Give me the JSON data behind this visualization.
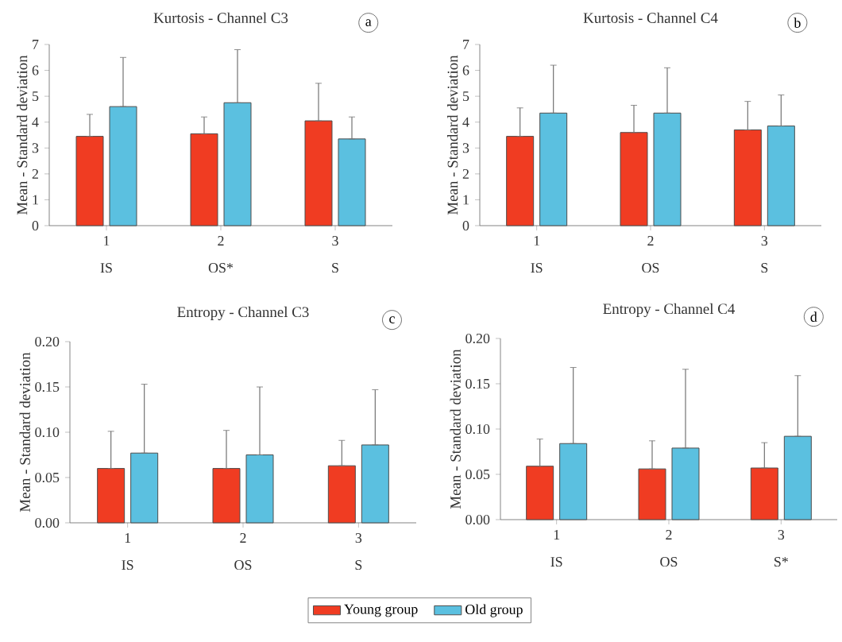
{
  "chart_data": [
    {
      "type": "bar",
      "title": "Kurtosis - Channel C3",
      "ylabel": "Mean - Standard deviation",
      "categories": [
        "1",
        "2",
        "3"
      ],
      "annotations": [
        "IS",
        "OS*",
        "S",
        "a"
      ],
      "ylim": [
        0,
        7
      ],
      "yticks": [
        0,
        1,
        2,
        3,
        4,
        5,
        6,
        7
      ],
      "series": [
        {
          "color": "#f03c22",
          "values": [
            3.45,
            3.55,
            4.05
          ],
          "errors": [
            [
              3.45,
              4.3
            ],
            [
              3.55,
              4.2
            ],
            [
              4.05,
              5.5
            ]
          ]
        },
        {
          "color": "#5bc0e0",
          "values": [
            4.6,
            4.75,
            3.35
          ],
          "errors": [
            [
              4.6,
              6.5
            ],
            [
              4.75,
              6.8
            ],
            [
              3.35,
              4.2
            ]
          ]
        }
      ]
    },
    {
      "type": "bar",
      "title": "Kurtosis - Channel C4",
      "ylabel": "Mean - Standard deviation",
      "categories": [
        "1",
        "2",
        "3"
      ],
      "annotations": [
        "IS",
        "OS",
        "S",
        "b"
      ],
      "ylim": [
        0,
        7
      ],
      "yticks": [
        0,
        1,
        2,
        3,
        4,
        5,
        6,
        7
      ],
      "series": [
        {
          "color": "#f03c22",
          "values": [
            3.45,
            3.6,
            3.7
          ],
          "errors": [
            [
              3.45,
              4.55
            ],
            [
              3.6,
              4.65
            ],
            [
              3.7,
              4.8
            ]
          ]
        },
        {
          "color": "#5bc0e0",
          "values": [
            4.35,
            4.35,
            3.85
          ],
          "errors": [
            [
              4.35,
              6.2
            ],
            [
              4.35,
              6.1
            ],
            [
              3.85,
              5.05
            ]
          ]
        }
      ]
    },
    {
      "type": "bar",
      "title": "Entropy - Channel C3",
      "ylabel": "Mean - Standard deviation",
      "categories": [
        "1",
        "2",
        "3"
      ],
      "annotations": [
        "IS",
        "OS",
        "S",
        "c"
      ],
      "ylim": [
        0,
        0.2
      ],
      "yticks": [
        {
          "value": 0,
          "label": "0.00"
        },
        {
          "value": 0.05,
          "label": "0.05"
        },
        {
          "value": 0.1,
          "label": "0.10"
        },
        {
          "value": 0.15,
          "label": "0.15"
        },
        {
          "value": 0.2,
          "label": "0.20"
        }
      ],
      "series": [
        {
          "color": "#f03c22",
          "values": [
            0.06,
            0.06,
            0.063
          ],
          "errors": [
            [
              0.06,
              0.101
            ],
            [
              0.06,
              0.102
            ],
            [
              0.063,
              0.091
            ]
          ]
        },
        {
          "color": "#5bc0e0",
          "values": [
            0.077,
            0.075,
            0.086
          ],
          "errors": [
            [
              0.077,
              0.153
            ],
            [
              0.075,
              0.15
            ],
            [
              0.086,
              0.147
            ]
          ]
        }
      ]
    },
    {
      "type": "bar",
      "title": "Entropy - Channel C4",
      "ylabel": "Mean - Standard deviation",
      "categories": [
        "1",
        "2",
        "3"
      ],
      "annotations": [
        "IS",
        "OS",
        "S*",
        "d"
      ],
      "ylim": [
        0,
        0.2
      ],
      "yticks": [
        {
          "value": 0,
          "label": "0.00"
        },
        {
          "value": 0.05,
          "label": "0.05"
        },
        {
          "value": 0.1,
          "label": "0.10"
        },
        {
          "value": 0.15,
          "label": "0.15"
        },
        {
          "value": 0.2,
          "label": "0.20"
        }
      ],
      "legend": "bottom",
      "series": [
        {
          "name": "Young group",
          "color": "#f03c22",
          "values": [
            0.059,
            0.056,
            0.057
          ],
          "errors": [
            [
              0.059,
              0.089
            ],
            [
              0.056,
              0.087
            ],
            [
              0.057,
              0.085
            ]
          ]
        },
        {
          "name": "Old group",
          "color": "#5bc0e0",
          "values": [
            0.084,
            0.079,
            0.092
          ],
          "errors": [
            [
              0.084,
              0.168
            ],
            [
              0.079,
              0.166
            ],
            [
              0.092,
              0.159
            ]
          ]
        }
      ]
    }
  ]
}
